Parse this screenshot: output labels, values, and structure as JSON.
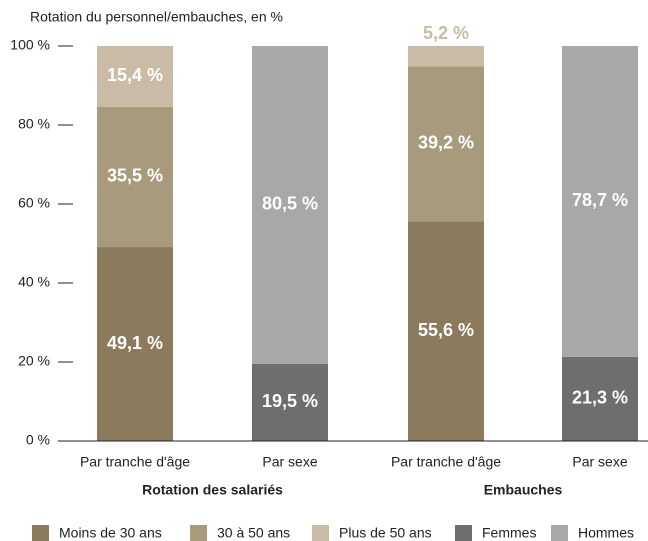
{
  "chart_data": {
    "type": "stacked_bar",
    "title": "Rotation du personnel/embauches, en %",
    "categories": [
      "Par tranche d'âge",
      "Par sexe",
      "Par tranche d'âge",
      "Par sexe"
    ],
    "groups": [
      "Rotation des salariés",
      "Embauches"
    ],
    "series": [
      {
        "name": "Moins de 30 ans",
        "color": "#8b7a5c",
        "values": [
          49.1,
          null,
          55.6,
          null
        ],
        "value_labels": [
          "49,1 %",
          null,
          "55,6 %",
          null
        ]
      },
      {
        "name": "30 à 50 ans",
        "color": "#a89a7c",
        "values": [
          35.5,
          null,
          39.2,
          null
        ],
        "value_labels": [
          "35,5 %",
          null,
          "39,2 %",
          null
        ]
      },
      {
        "name": "Plus de 50 ans",
        "color": "#c9bba5",
        "values": [
          15.4,
          null,
          5.2,
          null
        ],
        "value_labels": [
          "15,4 %",
          null,
          "5,2 %",
          null
        ]
      },
      {
        "name": "Femmes",
        "color": "#6d6e70",
        "values": [
          null,
          19.5,
          null,
          21.3
        ],
        "value_labels": [
          null,
          "19,5 %",
          null,
          "21,3 %"
        ]
      },
      {
        "name": "Hommes",
        "color": "#a7a8aa",
        "values": [
          null,
          80.5,
          null,
          78.7
        ],
        "value_labels": [
          null,
          "80,5 %",
          null,
          "78,7 %"
        ]
      }
    ],
    "ylim": [
      0,
      100
    ],
    "yticks": [
      {
        "value": 0,
        "label": "0 %"
      },
      {
        "value": 20,
        "label": "20 %"
      },
      {
        "value": 40,
        "label": "40 %"
      },
      {
        "value": 60,
        "label": "60 %"
      },
      {
        "value": 80,
        "label": "80 %"
      },
      {
        "value": 100,
        "label": "100 %"
      }
    ],
    "legend": "bottom"
  }
}
